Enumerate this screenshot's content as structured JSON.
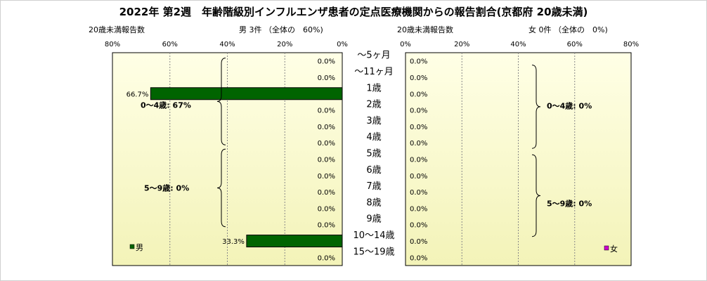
{
  "title": "2022年 第2週　年齢階級別インフルエンザ患者の定点医療機関からの報告割合(京都府 20歳未満)",
  "left_panel": {
    "subtitle_left": "20歳未満報告数",
    "subtitle_center": "男 3件 （全体の　60%)",
    "tick_labels": [
      "80%",
      "60%",
      "40%",
      "20%",
      "0%"
    ],
    "legend": "男",
    "groups": [
      {
        "label": "0～4歳: 67%"
      },
      {
        "label": "5～9歳: 0%"
      }
    ]
  },
  "right_panel": {
    "subtitle_left": "20歳未満報告数",
    "subtitle_center": "女 0件 （全体の　0%)",
    "tick_labels": [
      "0%",
      "20%",
      "40%",
      "60%",
      "80%"
    ],
    "legend": "女",
    "groups": [
      {
        "label": "0～4歳: 0%"
      },
      {
        "label": "5～9歳: 0%"
      }
    ]
  },
  "colors": {
    "male_bar": "#006400",
    "female_legend": "#cc00cc",
    "plot_bg_top": "#ffffe6",
    "plot_bg_bottom": "#f3f3b8"
  },
  "chart_data": [
    {
      "type": "bar",
      "orientation": "horizontal",
      "direction": "right-to-left",
      "series": [
        {
          "name": "男",
          "values": [
            0.0,
            0.0,
            66.7,
            0.0,
            0.0,
            0.0,
            0.0,
            0.0,
            0.0,
            0.0,
            0.0,
            33.3,
            0.0
          ]
        }
      ],
      "categories": [
        "～5ヶ月",
        "～11ヶ月",
        "1歳",
        "2歳",
        "3歳",
        "4歳",
        "5歳",
        "6歳",
        "7歳",
        "8歳",
        "9歳",
        "10～14歳",
        "15～19歳"
      ],
      "value_labels": [
        "0.0%",
        "0.0%",
        "66.7%",
        "0.0%",
        "0.0%",
        "0.0%",
        "0.0%",
        "0.0%",
        "0.0%",
        "0.0%",
        "0.0%",
        "33.3%",
        "0.0%"
      ],
      "xlim": [
        0,
        80
      ],
      "grid": true
    },
    {
      "type": "bar",
      "orientation": "horizontal",
      "direction": "left-to-right",
      "series": [
        {
          "name": "女",
          "values": [
            0.0,
            0.0,
            0.0,
            0.0,
            0.0,
            0.0,
            0.0,
            0.0,
            0.0,
            0.0,
            0.0,
            0.0,
            0.0
          ]
        }
      ],
      "categories": [
        "～5ヶ月",
        "～11ヶ月",
        "1歳",
        "2歳",
        "3歳",
        "4歳",
        "5歳",
        "6歳",
        "7歳",
        "8歳",
        "9歳",
        "10～14歳",
        "15～19歳"
      ],
      "value_labels": [
        "0.0%",
        "0.0%",
        "0.0%",
        "0.0%",
        "0.0%",
        "0.0%",
        "0.0%",
        "0.0%",
        "0.0%",
        "0.0%",
        "0.0%",
        "0.0%",
        "0.0%"
      ],
      "xlim": [
        0,
        80
      ],
      "grid": true
    }
  ]
}
